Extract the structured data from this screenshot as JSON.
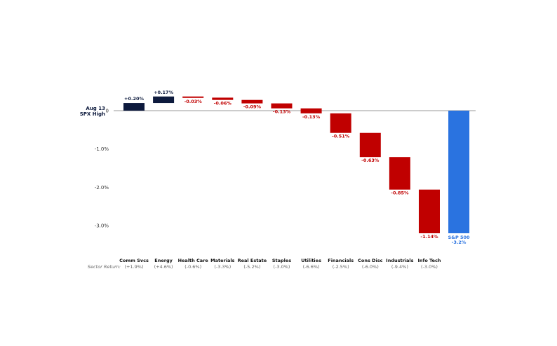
{
  "chart_data": {
    "type": "waterfall",
    "baseline_label_line1": "Aug 13",
    "baseline_label_line2": "SPX High",
    "y_ticks": [
      {
        "value": 0,
        "label": "0"
      },
      {
        "value": -1.0,
        "label": "-1.0%"
      },
      {
        "value": -2.0,
        "label": "-2.0%"
      },
      {
        "value": -3.0,
        "label": "-3.0%"
      }
    ],
    "ylim": [
      -3.4,
      0.45
    ],
    "sector_return_title": "Sector Return:",
    "categories": [
      "Comm Svcs",
      "Energy",
      "Health Care",
      "Materials",
      "Real Estate",
      "Staples",
      "Utilities",
      "Financials",
      "Cons Disc",
      "Industrials",
      "Info Tech"
    ],
    "values": [
      0.2,
      0.17,
      -0.03,
      -0.06,
      -0.09,
      -0.13,
      -0.13,
      -0.51,
      -0.63,
      -0.85,
      -1.14
    ],
    "value_labels": [
      "+0.20%",
      "+0.17%",
      "-0.03%",
      "-0.06%",
      "-0.09%",
      "-0.13%",
      "-0.13%",
      "-0.51%",
      "-0.63%",
      "-0.85%",
      "-1.14%"
    ],
    "sector_returns": [
      "(+1.9%)",
      "(+4.6%)",
      "(-0.6%)",
      "(-3.3%)",
      "(-5.2%)",
      "(-3.0%)",
      "(-6.6%)",
      "(-2.5%)",
      "(-6.0%)",
      "(-9.4%)",
      "(-3.0%)"
    ],
    "total": {
      "label_line1": "S&P 500",
      "label_line2": "-3.2%",
      "value": -3.2
    },
    "colors": {
      "positive": "#0d1a3d",
      "negative": "#c00000",
      "total": "#2a73e0",
      "axis": "#999999"
    }
  }
}
